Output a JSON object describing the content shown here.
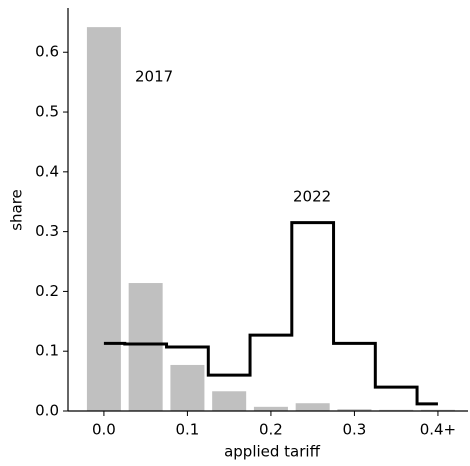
{
  "chart_data": {
    "type": "bar",
    "x_label": "applied tariff",
    "y_label": "share",
    "x": [
      0,
      0.05,
      0.1,
      0.15,
      0.2,
      0.25,
      0.3,
      0.35,
      0.4
    ],
    "series": [
      {
        "name": "2017",
        "type": "bar",
        "color": "#c0c0c0",
        "values": [
          0.642,
          0.214,
          0.077,
          0.033,
          0.007,
          0.013,
          0.003,
          0.002,
          0.002
        ]
      },
      {
        "name": "2022",
        "type": "step",
        "color": "#000000",
        "values": [
          0.113,
          0.112,
          0.107,
          0.06,
          0.127,
          0.315,
          0.113,
          0.04,
          0.012
        ]
      }
    ],
    "xlim": [
      -0.043,
      0.436
    ],
    "ylim": [
      0,
      0.674
    ],
    "xticks": [
      {
        "value": 0,
        "label": "0.0"
      },
      0.1,
      0.2,
      0.3,
      {
        "value": 0.4,
        "label": "0.4+"
      }
    ],
    "yticks": [
      {
        "value": 0,
        "label": "0.0"
      },
      0.1,
      0.2,
      0.3,
      0.4,
      0.5,
      0.6
    ]
  }
}
